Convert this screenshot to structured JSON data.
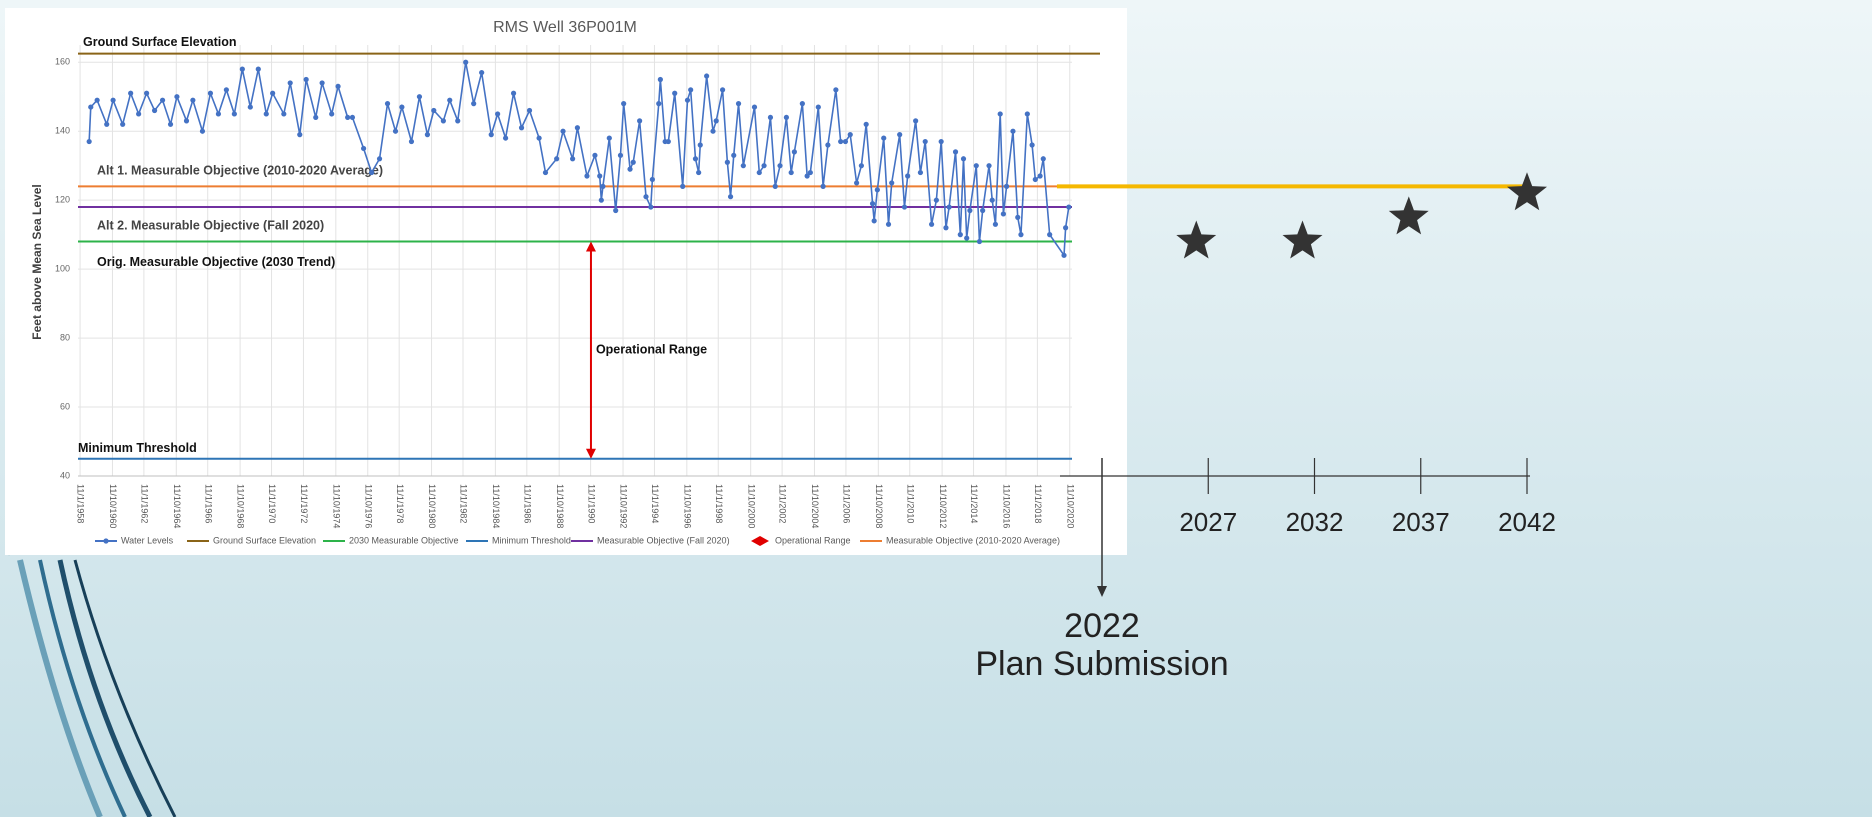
{
  "chart_data": {
    "type": "line",
    "title": "RMS Well 36P001M",
    "y_label": "Feet above Mean Sea Level",
    "xlim": [
      1958.7,
      2021.0
    ],
    "ylim": [
      40,
      165
    ],
    "yticks": [
      40,
      60,
      80,
      100,
      120,
      140,
      160
    ],
    "grid": true,
    "xticks": [
      {
        "value": 1958.83,
        "label": "11/1/1958"
      },
      {
        "value": 1960.86,
        "label": "11/10/1960"
      },
      {
        "value": 1962.83,
        "label": "11/1/1962"
      },
      {
        "value": 1964.86,
        "label": "11/10/1964"
      },
      {
        "value": 1966.83,
        "label": "11/1/1966"
      },
      {
        "value": 1968.86,
        "label": "11/10/1968"
      },
      {
        "value": 1970.83,
        "label": "11/1/1970"
      },
      {
        "value": 1972.83,
        "label": "11/1/1972"
      },
      {
        "value": 1974.86,
        "label": "11/10/1974"
      },
      {
        "value": 1976.86,
        "label": "11/10/1976"
      },
      {
        "value": 1978.83,
        "label": "11/1/1978"
      },
      {
        "value": 1980.86,
        "label": "11/10/1980"
      },
      {
        "value": 1982.83,
        "label": "11/1/1982"
      },
      {
        "value": 1984.86,
        "label": "11/10/1984"
      },
      {
        "value": 1986.83,
        "label": "11/1/1986"
      },
      {
        "value": 1988.86,
        "label": "11/10/1988"
      },
      {
        "value": 1990.83,
        "label": "11/1/1990"
      },
      {
        "value": 1992.86,
        "label": "11/10/1992"
      },
      {
        "value": 1994.83,
        "label": "11/1/1994"
      },
      {
        "value": 1996.86,
        "label": "11/10/1996"
      },
      {
        "value": 1998.83,
        "label": "11/1/1998"
      },
      {
        "value": 2000.86,
        "label": "11/10/2000"
      },
      {
        "value": 2002.83,
        "label": "11/1/2002"
      },
      {
        "value": 2004.86,
        "label": "11/10/2004"
      },
      {
        "value": 2006.83,
        "label": "11/1/2006"
      },
      {
        "value": 2008.86,
        "label": "11/10/2008"
      },
      {
        "value": 2010.83,
        "label": "11/1/2010"
      },
      {
        "value": 2012.86,
        "label": "11/10/2012"
      },
      {
        "value": 2014.83,
        "label": "11/1/2014"
      },
      {
        "value": 2016.86,
        "label": "11/10/2016"
      },
      {
        "value": 2018.83,
        "label": "11/1/2018"
      },
      {
        "value": 2020.86,
        "label": "11/10/2020"
      }
    ],
    "series": [
      {
        "name": "Water Levels",
        "color": "#4472c4",
        "x": [
          1959.4,
          1959.5,
          1959.9,
          1960.5,
          1960.9,
          1961.5,
          1962.0,
          1962.5,
          1963.0,
          1963.5,
          1964.0,
          1964.5,
          1964.9,
          1965.5,
          1965.9,
          1966.5,
          1967.0,
          1967.5,
          1968.0,
          1968.5,
          1969.0,
          1969.5,
          1970.0,
          1970.5,
          1970.9,
          1971.6,
          1972.0,
          1972.6,
          1973.0,
          1973.6,
          1974.0,
          1974.6,
          1975.0,
          1975.6,
          1975.9,
          1976.6,
          1977.1,
          1977.6,
          1978.1,
          1978.6,
          1979.0,
          1979.6,
          1980.1,
          1980.6,
          1981.0,
          1981.6,
          1982.0,
          1982.5,
          1983.0,
          1983.5,
          1984.0,
          1984.6,
          1985.0,
          1985.5,
          1986.0,
          1986.5,
          1987.0,
          1987.6,
          1988.0,
          1988.7,
          1989.1,
          1989.7,
          1990.0,
          1990.6,
          1991.1,
          1991.4,
          1991.5,
          1991.6,
          1992.0,
          1992.4,
          1992.7,
          1992.9,
          1993.3,
          1993.5,
          1993.9,
          1994.3,
          1994.6,
          1994.7,
          1995.1,
          1995.2,
          1995.5,
          1995.7,
          1996.1,
          1996.6,
          1996.9,
          1997.1,
          1997.4,
          1997.6,
          1997.7,
          1998.1,
          1998.5,
          1998.7,
          1999.1,
          1999.4,
          1999.6,
          1999.8,
          2000.1,
          2000.4,
          2001.1,
          2001.4,
          2001.7,
          2002.1,
          2002.4,
          2002.7,
          2003.1,
          2003.4,
          2003.6,
          2004.1,
          2004.4,
          2004.6,
          2005.1,
          2005.4,
          2005.7,
          2006.2,
          2006.5,
          2006.8,
          2007.1,
          2007.5,
          2007.8,
          2008.1,
          2008.5,
          2008.6,
          2008.8,
          2009.2,
          2009.5,
          2009.7,
          2010.2,
          2010.5,
          2010.7,
          2011.2,
          2011.5,
          2011.8,
          2012.2,
          2012.5,
          2012.8,
          2013.1,
          2013.3,
          2013.7,
          2014.0,
          2014.2,
          2014.4,
          2014.6,
          2015.0,
          2015.2,
          2015.4,
          2015.8,
          2016.0,
          2016.2,
          2016.5,
          2016.7,
          2016.9,
          2017.3,
          2017.6,
          2017.8,
          2018.2,
          2018.5,
          2018.7,
          2019.0,
          2019.2,
          2019.6,
          2020.5,
          2020.6,
          2020.8
        ],
        "values": [
          137,
          147,
          149,
          142,
          149,
          142,
          151,
          145,
          151,
          146,
          149,
          142,
          150,
          143,
          149,
          140,
          151,
          145,
          152,
          145,
          158,
          147,
          158,
          145,
          151,
          145,
          154,
          139,
          155,
          144,
          154,
          145,
          153,
          144,
          144,
          135,
          128,
          132,
          148,
          140,
          147,
          137,
          150,
          139,
          146,
          143,
          149,
          143,
          160,
          148,
          157,
          139,
          145,
          138,
          151,
          141,
          146,
          138,
          128,
          132,
          140,
          132,
          141,
          127,
          133,
          127,
          120,
          124,
          138,
          117,
          133,
          148,
          129,
          131,
          143,
          121,
          118,
          126,
          148,
          155,
          137,
          137,
          151,
          124,
          149,
          152,
          132,
          128,
          136,
          156,
          140,
          143,
          152,
          131,
          121,
          133,
          148,
          130,
          147,
          128,
          130,
          144,
          124,
          130,
          144,
          128,
          134,
          148,
          127,
          128,
          147,
          124,
          136,
          152,
          137,
          137,
          139,
          125,
          130,
          142,
          119,
          114,
          123,
          138,
          113,
          125,
          139,
          118,
          127,
          143,
          128,
          137,
          113,
          120,
          137,
          112,
          118,
          134,
          110,
          132,
          109,
          117,
          130,
          108,
          117,
          130,
          120,
          113,
          145,
          116,
          124,
          140,
          115,
          110,
          145,
          136,
          126,
          127,
          132,
          110,
          104,
          112,
          118
        ]
      }
    ],
    "reference_lines": [
      {
        "name": "Ground Surface Elevation",
        "label": "Ground Surface Elevation",
        "value": 162.5,
        "color": "#8a6418"
      },
      {
        "name": "2030 Measurable Objective",
        "label": "Orig. Measurable Objective (2030 Trend)",
        "value": 108,
        "color": "#2db34a"
      },
      {
        "name": "Minimum Threshold",
        "label": "Minimum Threshold",
        "value": 45,
        "color": "#2e75b6"
      },
      {
        "name": "Measurable Objective (Fall 2020)",
        "label": "Alt 2. Measurable Objective (Fall 2020)",
        "value": 118,
        "color": "#7030a0"
      },
      {
        "name": "Measurable Objective (2010-2020 Average)",
        "label": "Alt 1. Measurable Objective (2010-2020 Average)",
        "value": 124,
        "color": "#ed7d31"
      }
    ],
    "operational_range": {
      "name": "Operational Range",
      "label": "Operational Range",
      "x": 1990.85,
      "from": 108,
      "to": 45,
      "color": "#e00000"
    }
  },
  "timeline": {
    "years": [
      2027,
      2032,
      2037,
      2042
    ],
    "targets": [
      108,
      108,
      115,
      122
    ],
    "target_line": 124,
    "target_line_color": "#f5b800",
    "milestone_year": 2022,
    "milestone_label": "Plan Submission"
  }
}
